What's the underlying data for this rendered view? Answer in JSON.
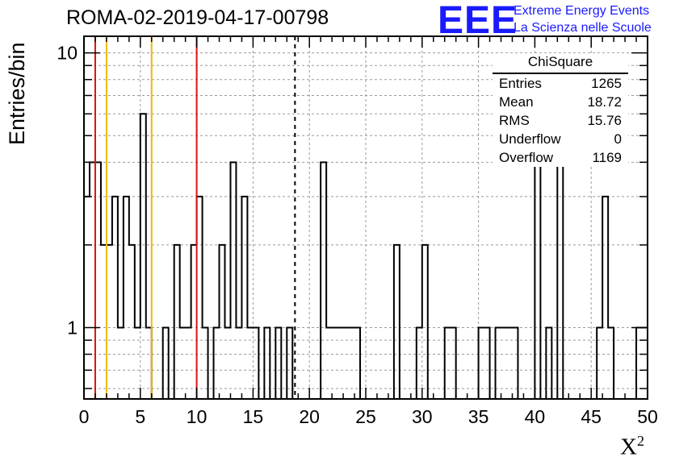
{
  "header": {
    "title": "ROMA-02-2019-04-17-00798",
    "logo_mark": "EEE",
    "logo_line1": "Extreme Energy Events",
    "logo_line2": "La Scienza nelle Scuole"
  },
  "stats_box": {
    "title": "ChiSquare",
    "rows": [
      {
        "label": "Entries",
        "value": "1265"
      },
      {
        "label": "Mean",
        "value": "18.72"
      },
      {
        "label": "RMS",
        "value": "15.76"
      },
      {
        "label": "Underflow",
        "value": "0"
      },
      {
        "label": "Overflow",
        "value": "1169"
      }
    ]
  },
  "colors": {
    "red_line": "#dd1111",
    "yellow_line": "#f2b800",
    "logo_blue": "#1a1aff",
    "histogram": "#000000"
  },
  "chart_data": {
    "type": "bar",
    "histogram": "step",
    "xlabel": "X",
    "xlabel_superscript": "2",
    "ylabel": "Entries/bin",
    "xlim": [
      0,
      50
    ],
    "ylim": [
      0.55,
      11.5
    ],
    "yscale": "log",
    "grid": true,
    "bin_width": 0.5,
    "x_ticks": [
      "0",
      "5",
      "10",
      "15",
      "20",
      "25",
      "30",
      "35",
      "40",
      "45",
      "50"
    ],
    "y_ticks": [
      "1",
      "10"
    ],
    "values": [
      3,
      4,
      4,
      2,
      2,
      3,
      1,
      3,
      2,
      1,
      6,
      1,
      0,
      0,
      1,
      0,
      2,
      1,
      1,
      2,
      3,
      1,
      0,
      1,
      2,
      1,
      4,
      1,
      3,
      1,
      1,
      0,
      1,
      0,
      1,
      0,
      1,
      0,
      0,
      0,
      0,
      0,
      4,
      1,
      1,
      1,
      1,
      1,
      1,
      0,
      0,
      0,
      0,
      0,
      0,
      2,
      0,
      0,
      0,
      1,
      2,
      0,
      0,
      0,
      1,
      1,
      0,
      0,
      0,
      0,
      1,
      1,
      0,
      1,
      1,
      1,
      1,
      0,
      0,
      0,
      5,
      0,
      1,
      0,
      5,
      0,
      0,
      0,
      0,
      0,
      0,
      1,
      3,
      1,
      0,
      0,
      0,
      0,
      1,
      1
    ],
    "vertical_lines": [
      {
        "x": 1,
        "color": "red",
        "style": "solid"
      },
      {
        "x": 2,
        "color": "yellow",
        "style": "solid"
      },
      {
        "x": 6,
        "color": "yellow",
        "style": "solid"
      },
      {
        "x": 10,
        "color": "red",
        "style": "solid"
      },
      {
        "x": 18.72,
        "color": "black",
        "style": "dashed"
      }
    ]
  }
}
